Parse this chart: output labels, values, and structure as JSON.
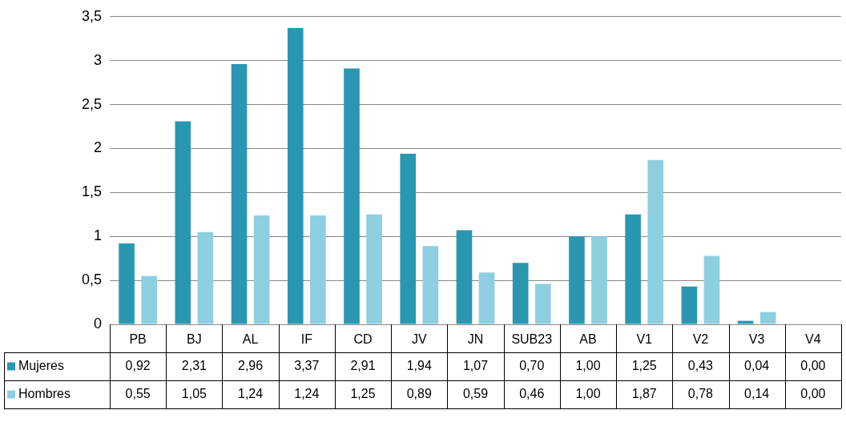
{
  "chart_data": {
    "type": "bar",
    "categories": [
      "PB",
      "BJ",
      "AL",
      "IF",
      "CD",
      "JV",
      "JN",
      "SUB23",
      "AB",
      "V1",
      "V2",
      "V3",
      "V4"
    ],
    "series": [
      {
        "name": "Mujeres",
        "color": "#2a97b2",
        "values": [
          0.92,
          2.31,
          2.96,
          3.37,
          2.91,
          1.94,
          1.07,
          0.7,
          1.0,
          1.25,
          0.43,
          0.04,
          0.0
        ],
        "value_labels": [
          "0,92",
          "2,31",
          "2,96",
          "3,37",
          "2,91",
          "1,94",
          "1,07",
          "0,70",
          "1,00",
          "1,25",
          "0,43",
          "0,04",
          "0,00"
        ]
      },
      {
        "name": "Hombres",
        "color": "#8dcfe0",
        "values": [
          0.55,
          1.05,
          1.24,
          1.24,
          1.25,
          0.89,
          0.59,
          0.46,
          1.0,
          1.87,
          0.78,
          0.14,
          0.0
        ],
        "value_labels": [
          "0,55",
          "1,05",
          "1,24",
          "1,24",
          "1,25",
          "0,89",
          "0,59",
          "0,46",
          "1,00",
          "1,87",
          "0,78",
          "0,14",
          "0,00"
        ]
      }
    ],
    "ylim": [
      0,
      3.5
    ],
    "yticks": [
      0,
      {
        "value": 0.5,
        "label": "0,5"
      },
      1,
      {
        "value": 1.5,
        "label": "1,5"
      },
      2,
      {
        "value": 2.5,
        "label": "2,5"
      },
      3,
      {
        "value": 3.5,
        "label": "3,5"
      }
    ],
    "grid": "y",
    "legend": "bottom"
  }
}
